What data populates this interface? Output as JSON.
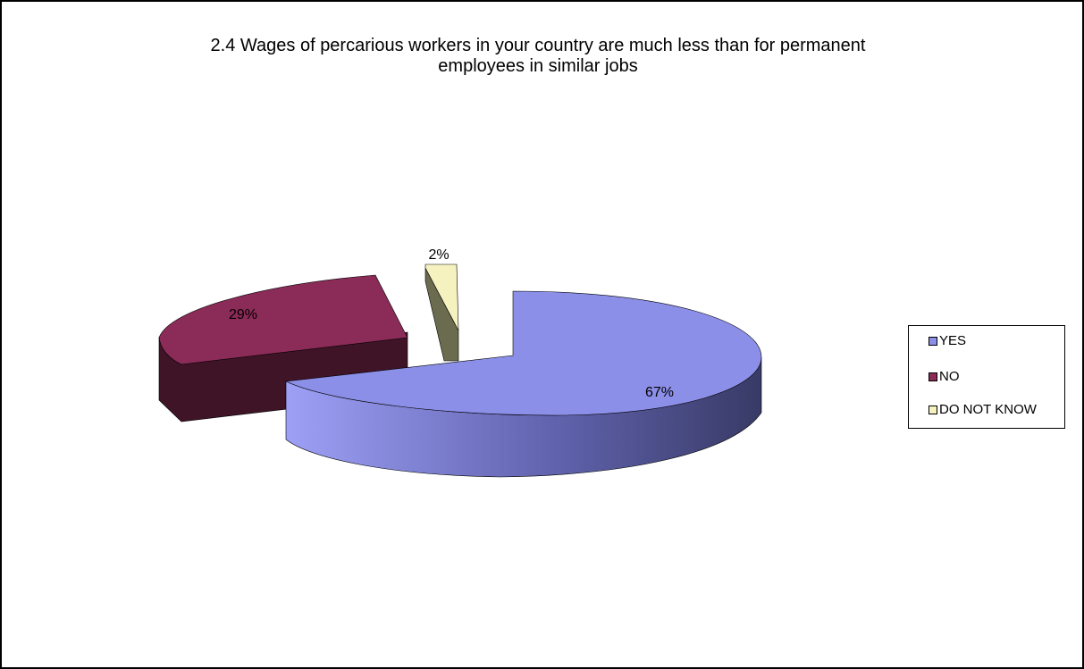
{
  "chart_data": {
    "type": "pie",
    "title_lines": [
      "2.4 Wages of percarious workers in your country are much less than for permanent",
      "employees in similar jobs"
    ],
    "categories": [
      "YES",
      "NO",
      "DO NOT KNOW"
    ],
    "values": [
      67,
      29,
      2
    ],
    "value_labels": [
      "67%",
      "29%",
      "2%"
    ],
    "colors": [
      "#8c8fe8",
      "#8b2b57",
      "#f5f2c0"
    ],
    "legend_position": "right",
    "exploded": true,
    "three_d": true
  }
}
